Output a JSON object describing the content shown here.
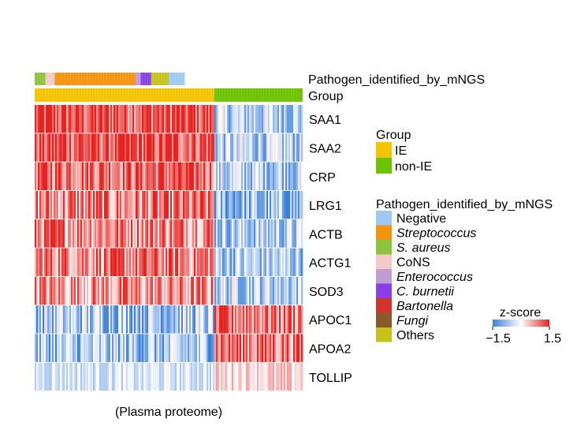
{
  "chart_data": {
    "type": "heatmap",
    "title": "",
    "xlabel": "(Plasma proteome)",
    "annotation_rows": [
      "Pathogen_identified_by_mNGS",
      "Group"
    ],
    "rows": [
      "SAA1",
      "SAA2",
      "CRP",
      "LRG1",
      "ACTB",
      "ACTG1",
      "SOD3",
      "APOC1",
      "APOA2",
      "TOLLIP"
    ],
    "colorbar": {
      "title": "z-score",
      "min": -1.5,
      "max": 1.5,
      "min_label": "−1.5",
      "max_label": "1.5",
      "low_color": "#3a7fd9",
      "mid_color": "#ffffff",
      "high_color": "#e52421"
    },
    "group_legend": {
      "title": "Group",
      "items": [
        {
          "label": "IE",
          "color": "#f5c400"
        },
        {
          "label": "non-IE",
          "color": "#6cc300"
        }
      ]
    },
    "pathogen_legend": {
      "title": "Pathogen_identified_by_mNGS",
      "items": [
        {
          "label": "Negative",
          "color": "#9ec9f2",
          "italic": false
        },
        {
          "label": "Streptococcus",
          "color": "#f5930f",
          "italic": true
        },
        {
          "label": "S. aureus",
          "color": "#8cc43c",
          "italic": true
        },
        {
          "label": "CoNS",
          "color": "#f7c8c8",
          "italic": false
        },
        {
          "label": "Enterococcus",
          "color": "#c39bd3",
          "italic": true
        },
        {
          "label": "C. burnetii",
          "color": "#8a3ee8",
          "italic": true
        },
        {
          "label": "Bartonella",
          "color": "#d0342c",
          "italic": true
        },
        {
          "label": "Fungi",
          "color": "#8b5a2b",
          "italic": true
        },
        {
          "label": "Others",
          "color": "#c7c21a",
          "italic": false
        }
      ]
    },
    "pathogen_segments": [
      {
        "category": "S. aureus",
        "fraction": 0.04
      },
      {
        "category": "CoNS",
        "fraction": 0.035
      },
      {
        "category": "Streptococcus",
        "fraction": 0.3
      },
      {
        "category": "Enterococcus",
        "fraction": 0.02
      },
      {
        "category": "C. burnetii",
        "fraction": 0.04
      },
      {
        "category": "Others",
        "fraction": 0.065
      },
      {
        "category": "Negative",
        "fraction": 0.06
      }
    ],
    "pathogen_annotated_fraction": 0.56,
    "group_segments": [
      {
        "category": "IE",
        "fraction": 0.67
      },
      {
        "category": "non-IE",
        "fraction": 0.33
      }
    ],
    "row_profiles": [
      {
        "gene": "SAA1",
        "ie_mean": 1.2,
        "nonie_mean": -0.55,
        "noise": 0.8
      },
      {
        "gene": "SAA2",
        "ie_mean": 1.2,
        "nonie_mean": -0.55,
        "noise": 0.8
      },
      {
        "gene": "CRP",
        "ie_mean": 1.1,
        "nonie_mean": -0.55,
        "noise": 0.8
      },
      {
        "gene": "LRG1",
        "ie_mean": 0.8,
        "nonie_mean": -0.9,
        "noise": 0.9
      },
      {
        "gene": "ACTB",
        "ie_mean": 0.9,
        "nonie_mean": -0.6,
        "noise": 0.8
      },
      {
        "gene": "ACTG1",
        "ie_mean": 0.9,
        "nonie_mean": -0.6,
        "noise": 0.8
      },
      {
        "gene": "SOD3",
        "ie_mean": 0.7,
        "nonie_mean": -0.5,
        "noise": 0.8
      },
      {
        "gene": "APOC1",
        "ie_mean": -0.6,
        "nonie_mean": 1.0,
        "noise": 0.9
      },
      {
        "gene": "APOA2",
        "ie_mean": -0.7,
        "nonie_mean": 1.0,
        "noise": 0.9
      },
      {
        "gene": "TOLLIP",
        "ie_mean": -0.3,
        "nonie_mean": 0.3,
        "noise": 0.4
      }
    ]
  }
}
